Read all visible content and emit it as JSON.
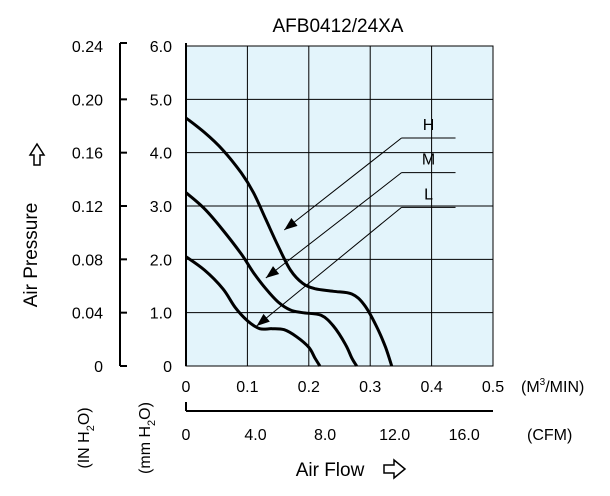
{
  "chart_data": {
    "type": "line",
    "title": "AFB0412/24XA",
    "xlabel": "Air Flow",
    "ylabel": "Air Pressure",
    "x_primary": {
      "unit": "(M³/MIN)",
      "unit_parts": [
        "(M",
        "3",
        "/MIN)"
      ],
      "range": [
        0,
        0.5
      ],
      "ticks": [
        "0",
        "0.1",
        "0.2",
        "0.3",
        "0.4",
        "0.5"
      ]
    },
    "x_secondary": {
      "unit": "(CFM)",
      "ticks": [
        {
          "label": "0",
          "value": 0
        },
        {
          "label": "4.0",
          "value": 4.0
        },
        {
          "label": "8.0",
          "value": 8.0
        },
        {
          "label": "12.0",
          "value": 12.0
        },
        {
          "label": "16.0",
          "value": 16.0
        }
      ]
    },
    "y_primary": {
      "unit": "(mm H2O)",
      "unit_parts": [
        "(mm H",
        "2",
        "O)"
      ],
      "range": [
        0,
        6.0
      ],
      "ticks": [
        "0",
        "1.0",
        "2.0",
        "3.0",
        "4.0",
        "5.0",
        "6.0"
      ]
    },
    "y_secondary": {
      "unit": "(IN H2O)",
      "unit_parts": [
        "(IN H",
        "2",
        "O)"
      ],
      "ticks": [
        "0",
        "0.04",
        "0.08",
        "0.12",
        "0.16",
        "0.20",
        "0.24"
      ]
    },
    "grid": true,
    "plot_background": "#e3f4fb",
    "series": [
      {
        "name": "H",
        "label_point": [
          0.395,
          4.35
        ],
        "arrow_to": [
          0.16,
          2.55
        ],
        "points": [
          [
            0,
            4.65
          ],
          [
            0.03,
            4.38
          ],
          [
            0.06,
            4.05
          ],
          [
            0.09,
            3.62
          ],
          [
            0.11,
            3.25
          ],
          [
            0.13,
            2.75
          ],
          [
            0.15,
            2.25
          ],
          [
            0.17,
            1.8
          ],
          [
            0.19,
            1.55
          ],
          [
            0.21,
            1.45
          ],
          [
            0.24,
            1.4
          ],
          [
            0.27,
            1.35
          ],
          [
            0.29,
            1.15
          ],
          [
            0.31,
            0.75
          ],
          [
            0.325,
            0.35
          ],
          [
            0.335,
            0
          ]
        ]
      },
      {
        "name": "M",
        "label_point": [
          0.395,
          3.7
        ],
        "arrow_to": [
          0.13,
          1.65
        ],
        "points": [
          [
            0,
            3.25
          ],
          [
            0.03,
            2.95
          ],
          [
            0.06,
            2.55
          ],
          [
            0.09,
            2.1
          ],
          [
            0.11,
            1.75
          ],
          [
            0.13,
            1.45
          ],
          [
            0.15,
            1.2
          ],
          [
            0.17,
            1.05
          ],
          [
            0.19,
            1.0
          ],
          [
            0.22,
            0.95
          ],
          [
            0.24,
            0.75
          ],
          [
            0.26,
            0.4
          ],
          [
            0.27,
            0.15
          ],
          [
            0.278,
            0
          ]
        ]
      },
      {
        "name": "L",
        "label_point": [
          0.395,
          3.05
        ],
        "arrow_to": [
          0.115,
          0.75
        ],
        "points": [
          [
            0,
            2.05
          ],
          [
            0.03,
            1.8
          ],
          [
            0.06,
            1.45
          ],
          [
            0.08,
            1.1
          ],
          [
            0.1,
            0.85
          ],
          [
            0.12,
            0.7
          ],
          [
            0.14,
            0.7
          ],
          [
            0.16,
            0.68
          ],
          [
            0.18,
            0.55
          ],
          [
            0.2,
            0.35
          ],
          [
            0.21,
            0.15
          ],
          [
            0.218,
            0
          ]
        ]
      }
    ]
  }
}
